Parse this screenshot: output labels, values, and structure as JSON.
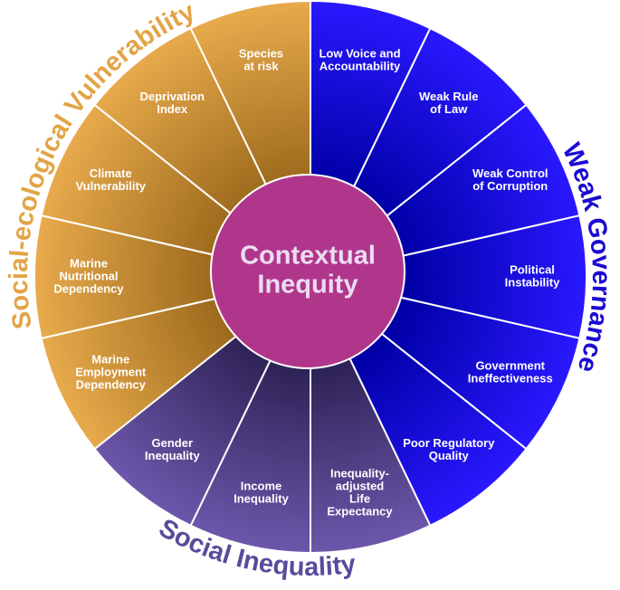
{
  "center": {
    "lines": [
      "Contextual",
      "Inequity"
    ]
  },
  "groups": [
    {
      "title": "Weak Governance",
      "segments": [
        [
          "Low Voice and",
          "Accountability"
        ],
        [
          "Weak Rule",
          "of Law"
        ],
        [
          "Weak Control",
          "of Corruption"
        ],
        [
          "Political",
          "Instability"
        ],
        [
          "Government",
          "Ineffectiveness"
        ],
        [
          "Poor Regulatory",
          "Quality"
        ]
      ]
    },
    {
      "title": "Social Inequality",
      "segments": [
        [
          "Inequality-",
          "adjusted",
          "Life",
          "Expectancy"
        ],
        [
          "Income",
          "Inequality"
        ],
        [
          "Gender",
          "Inequality"
        ]
      ]
    },
    {
      "title": "Social-ecological Vulnerability",
      "segments": [
        [
          "Marine",
          "Employment",
          "Dependency"
        ],
        [
          "Marine",
          "Nutritional",
          "Dependency"
        ],
        [
          "Climate",
          "Vulnerability"
        ],
        [
          "Deprivation",
          "Index"
        ],
        [
          "Species",
          "at risk"
        ]
      ]
    }
  ]
}
